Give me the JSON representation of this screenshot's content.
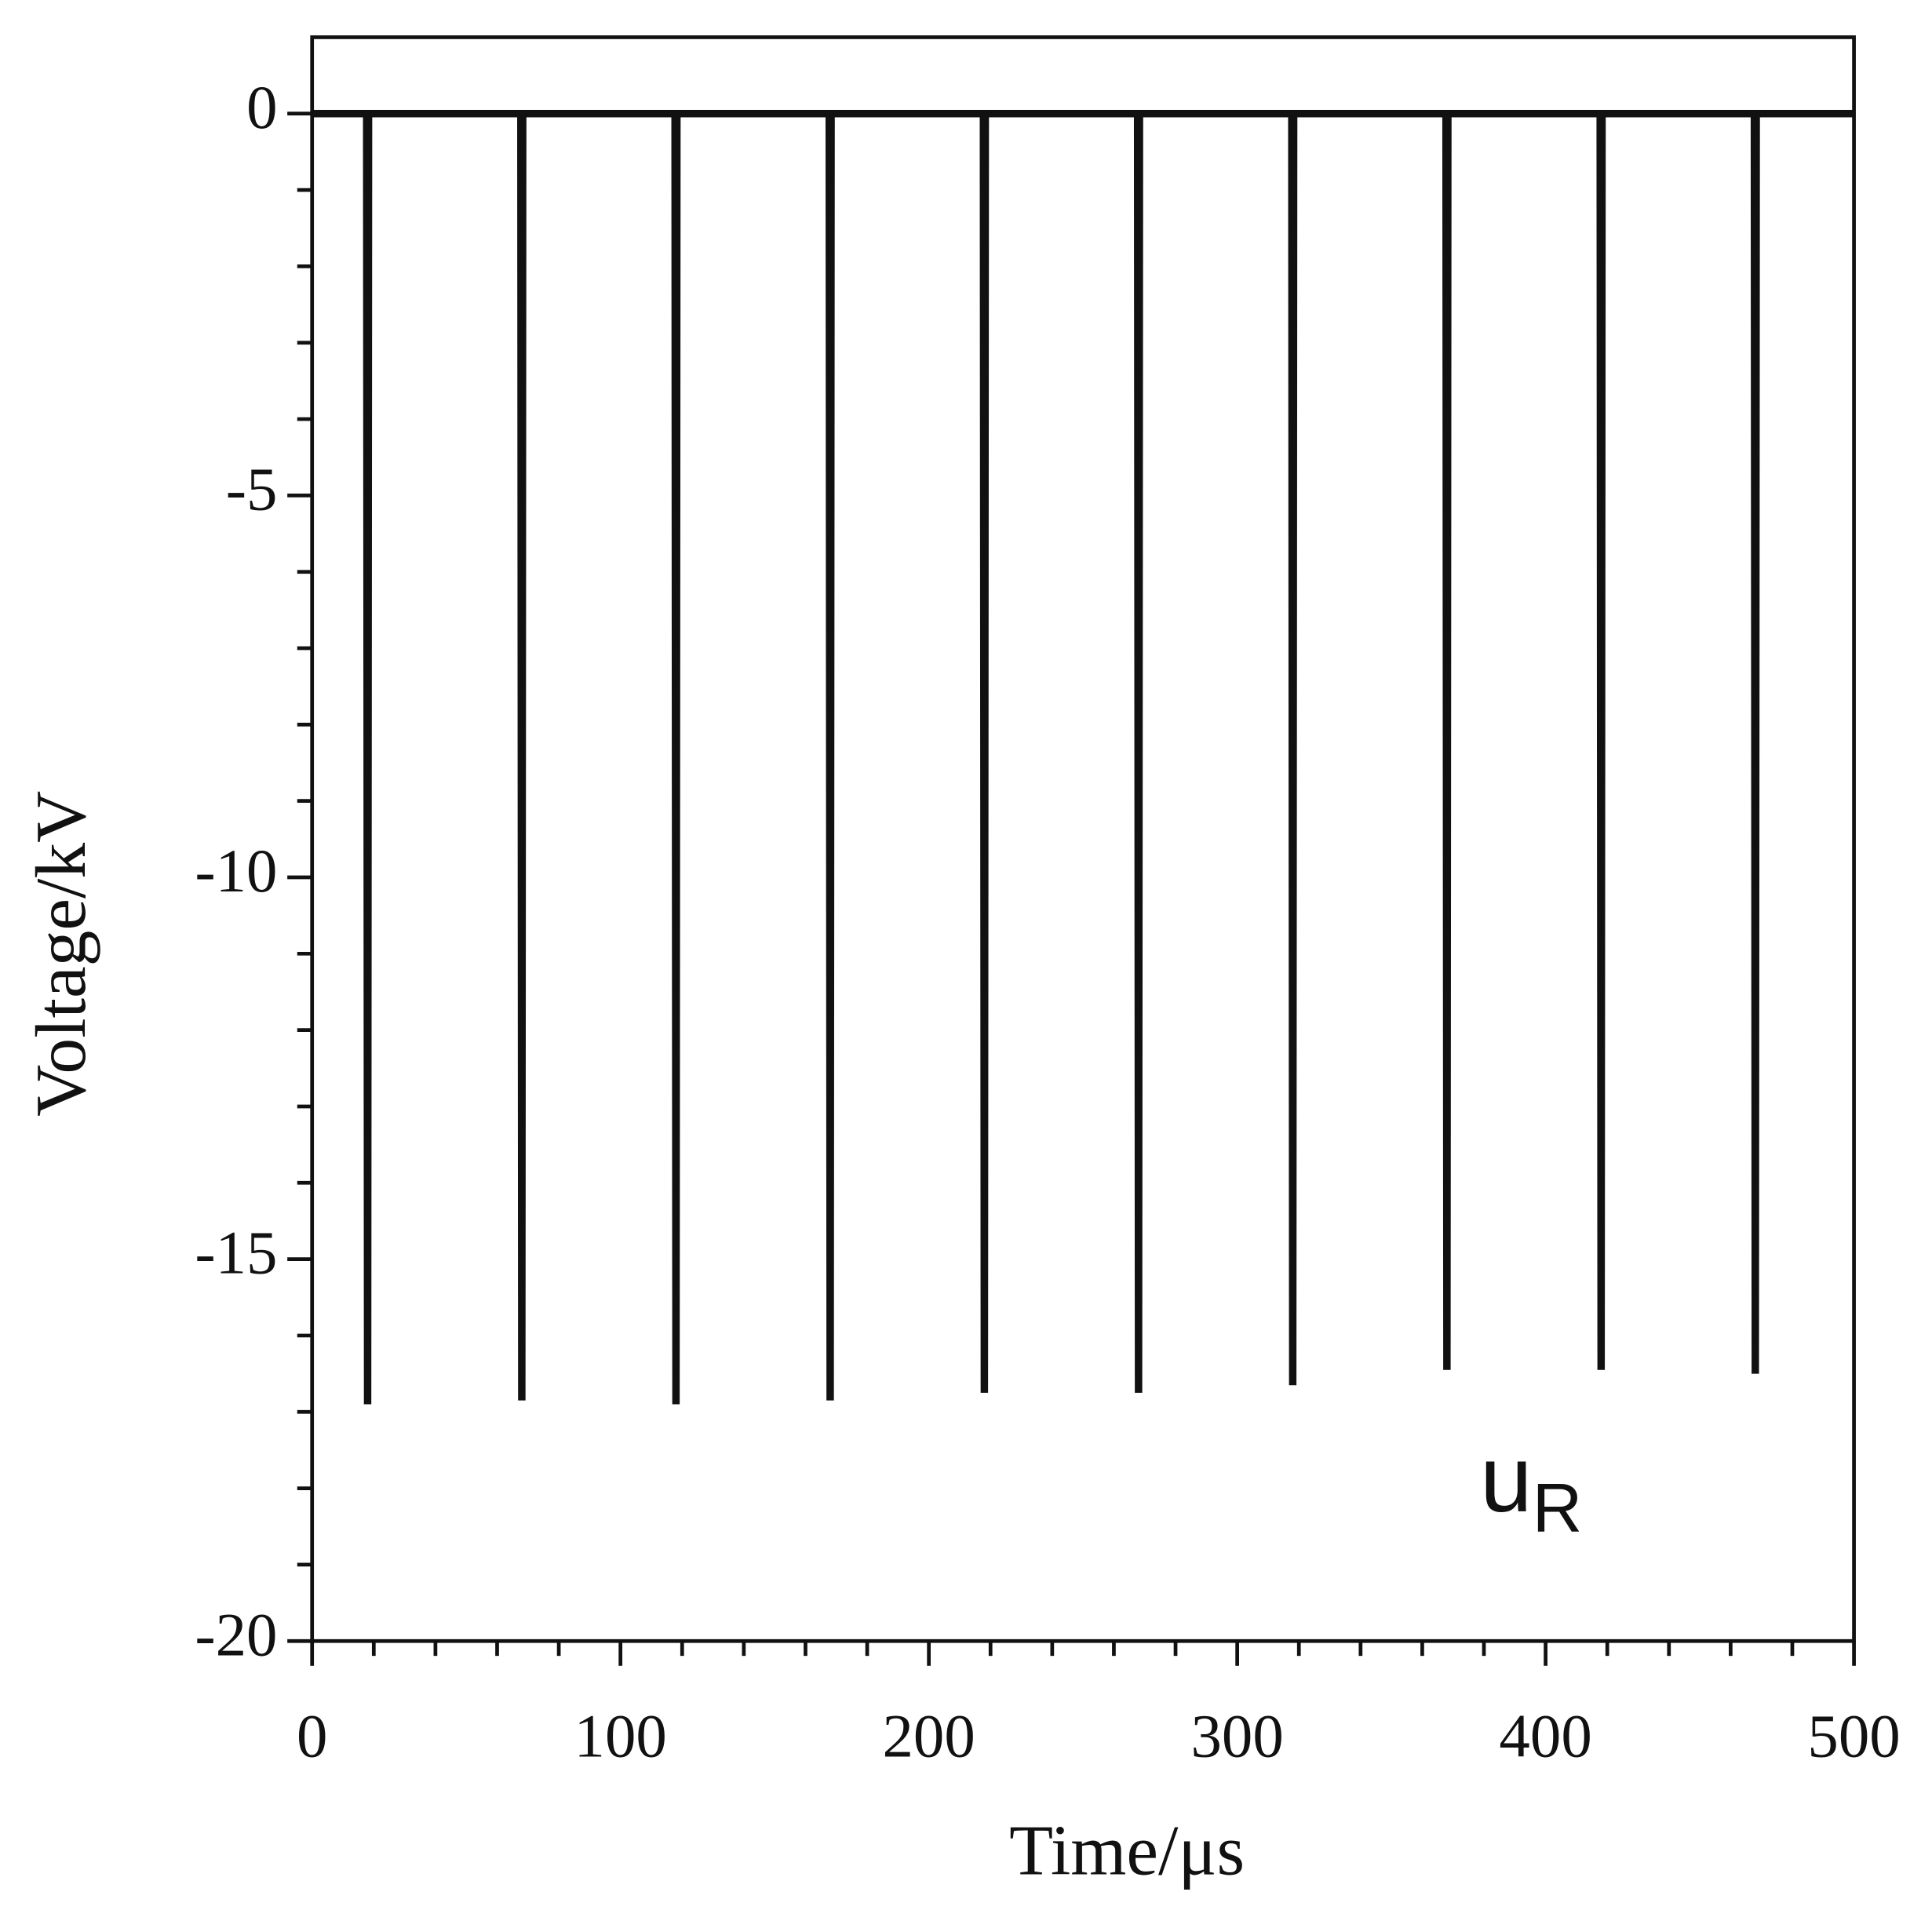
{
  "chart_data": {
    "type": "line",
    "xlabel": "Time/μs",
    "ylabel": "Voltage/kV",
    "annotation": {
      "text": "u",
      "subscript": "R"
    },
    "series": [
      {
        "name": "uR",
        "color": "#111111",
        "x": [
          0,
          17.7,
          18,
          18.3,
          67.7,
          68,
          68.3,
          117.7,
          118,
          118.3,
          167.7,
          168,
          168.3,
          217.7,
          218,
          218.3,
          267.7,
          268,
          268.3,
          317.7,
          318,
          318.3,
          367.7,
          368,
          368.3,
          417.7,
          418,
          418.3,
          467.7,
          468,
          468.3,
          500
        ],
        "values": [
          0,
          0,
          -16.9,
          0,
          0,
          -16.85,
          0,
          0,
          -16.9,
          0,
          0,
          -16.85,
          0,
          0,
          -16.75,
          0,
          0,
          -16.75,
          0,
          0,
          -16.65,
          0,
          0,
          -16.45,
          0,
          0,
          -16.45,
          0,
          0,
          -16.5,
          0,
          0
        ]
      }
    ],
    "xlim": [
      0,
      500
    ],
    "xticks": [
      0,
      100,
      200,
      300,
      400,
      500
    ],
    "xminor_ticks": [
      20,
      40,
      60,
      80,
      120,
      140,
      160,
      180,
      220,
      240,
      260,
      280,
      320,
      340,
      360,
      380,
      420,
      440,
      460,
      480
    ],
    "ylim": [
      -20,
      1
    ],
    "yticks": [
      -20,
      -15,
      -10,
      -5,
      0
    ],
    "yminor_ticks": [
      -19,
      -18,
      -17,
      -16,
      -14,
      -13,
      -12,
      -11,
      -9,
      -8,
      -7,
      -6,
      -4,
      -3,
      -2,
      -1
    ],
    "grid": false
  }
}
